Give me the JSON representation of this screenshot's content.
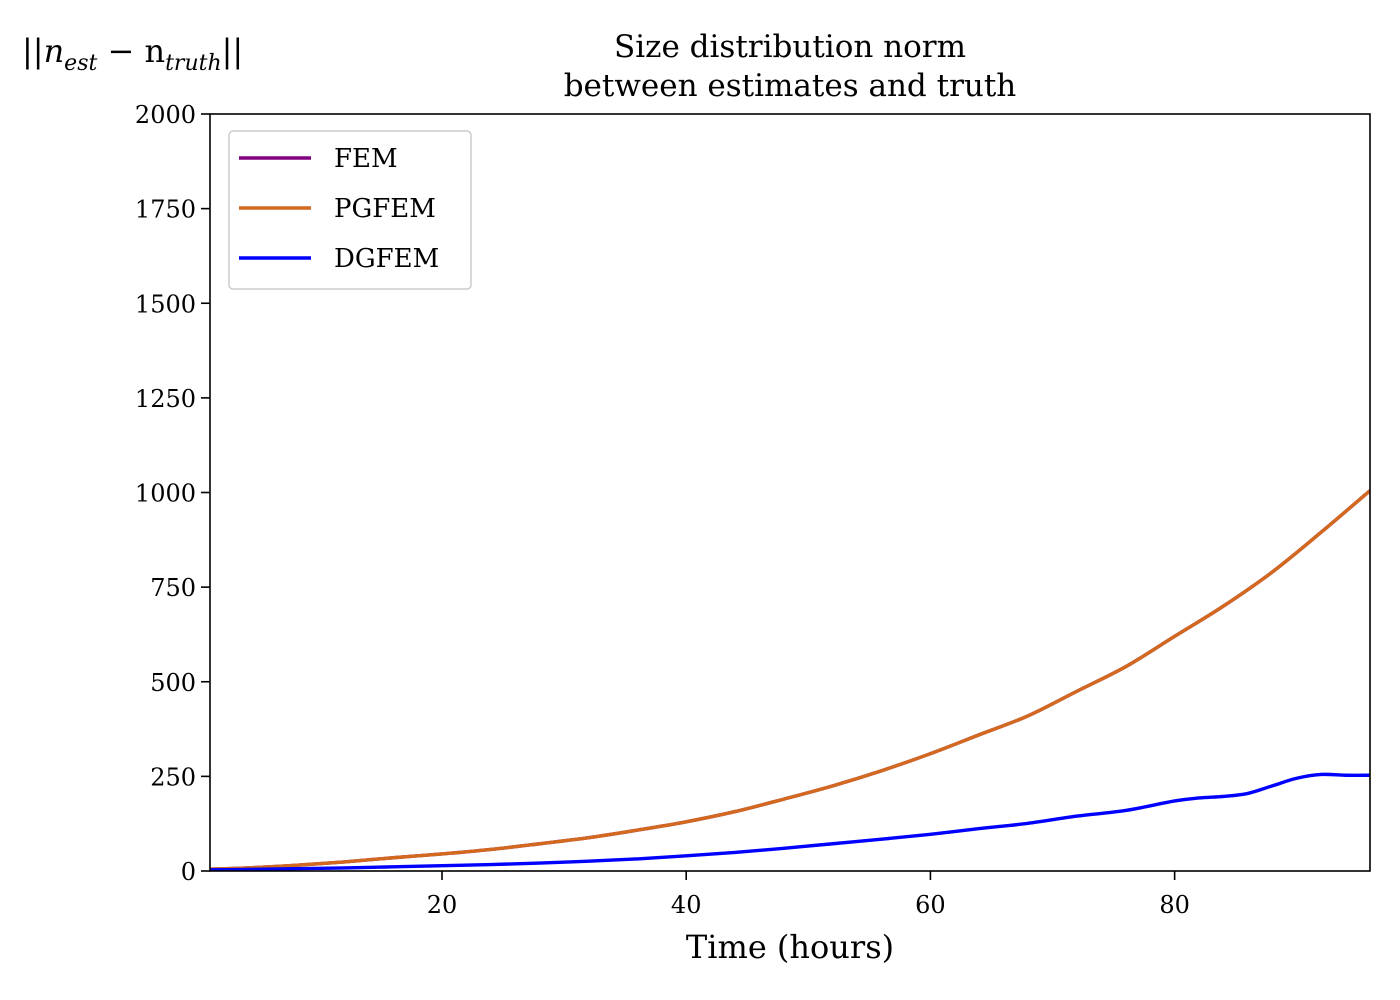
{
  "chart_data": {
    "type": "line",
    "title": "Size distribution norm\nbetween estimates and truth",
    "title_lines": [
      "Size distribution norm",
      "between estimates and truth"
    ],
    "ylabel": "||n_est − n_truth||",
    "ylabel_parts": {
      "prefix": "||n",
      "sub1": "est",
      "mid": " − n",
      "sub2": "truth",
      "suffix": "||"
    },
    "xlabel": "Time (hours)",
    "xlim": [
      1,
      96
    ],
    "ylim": [
      0,
      2000
    ],
    "xticks": [
      20,
      40,
      60,
      80
    ],
    "yticks": [
      0,
      250,
      500,
      750,
      1000,
      1250,
      1500,
      1750,
      2000
    ],
    "grid": false,
    "legend_position": "top-left",
    "series": [
      {
        "name": "FEM",
        "color": "#800080",
        "x": [
          1,
          4,
          8,
          12,
          16,
          20,
          24,
          28,
          32,
          36,
          40,
          44,
          48,
          52,
          56,
          60,
          64,
          68,
          72,
          76,
          80,
          84,
          88,
          92,
          96
        ],
        "y": [
          5,
          8,
          15,
          24,
          35,
          45,
          57,
          72,
          88,
          108,
          130,
          157,
          190,
          225,
          265,
          310,
          360,
          410,
          475,
          540,
          620,
          700,
          790,
          895,
          1005
        ]
      },
      {
        "name": "PGFEM",
        "color": "#D2691E",
        "x": [
          1,
          4,
          8,
          12,
          16,
          20,
          24,
          28,
          32,
          36,
          40,
          44,
          48,
          52,
          56,
          60,
          64,
          68,
          72,
          76,
          80,
          84,
          88,
          92,
          96
        ],
        "y": [
          5,
          8,
          15,
          24,
          35,
          45,
          57,
          72,
          88,
          108,
          130,
          157,
          190,
          225,
          265,
          310,
          360,
          410,
          475,
          540,
          620,
          700,
          790,
          895,
          1005
        ]
      },
      {
        "name": "DGFEM",
        "color": "#0000FF",
        "x": [
          1,
          4,
          8,
          12,
          16,
          20,
          24,
          28,
          32,
          36,
          40,
          44,
          48,
          52,
          56,
          60,
          64,
          68,
          72,
          76,
          80,
          82,
          84,
          86,
          88,
          90,
          92,
          94,
          96
        ],
        "y": [
          3,
          4,
          6,
          8,
          11,
          14,
          17,
          21,
          26,
          32,
          40,
          49,
          60,
          72,
          84,
          97,
          112,
          126,
          145,
          160,
          185,
          193,
          197,
          205,
          225,
          245,
          255,
          253,
          253
        ]
      }
    ]
  }
}
